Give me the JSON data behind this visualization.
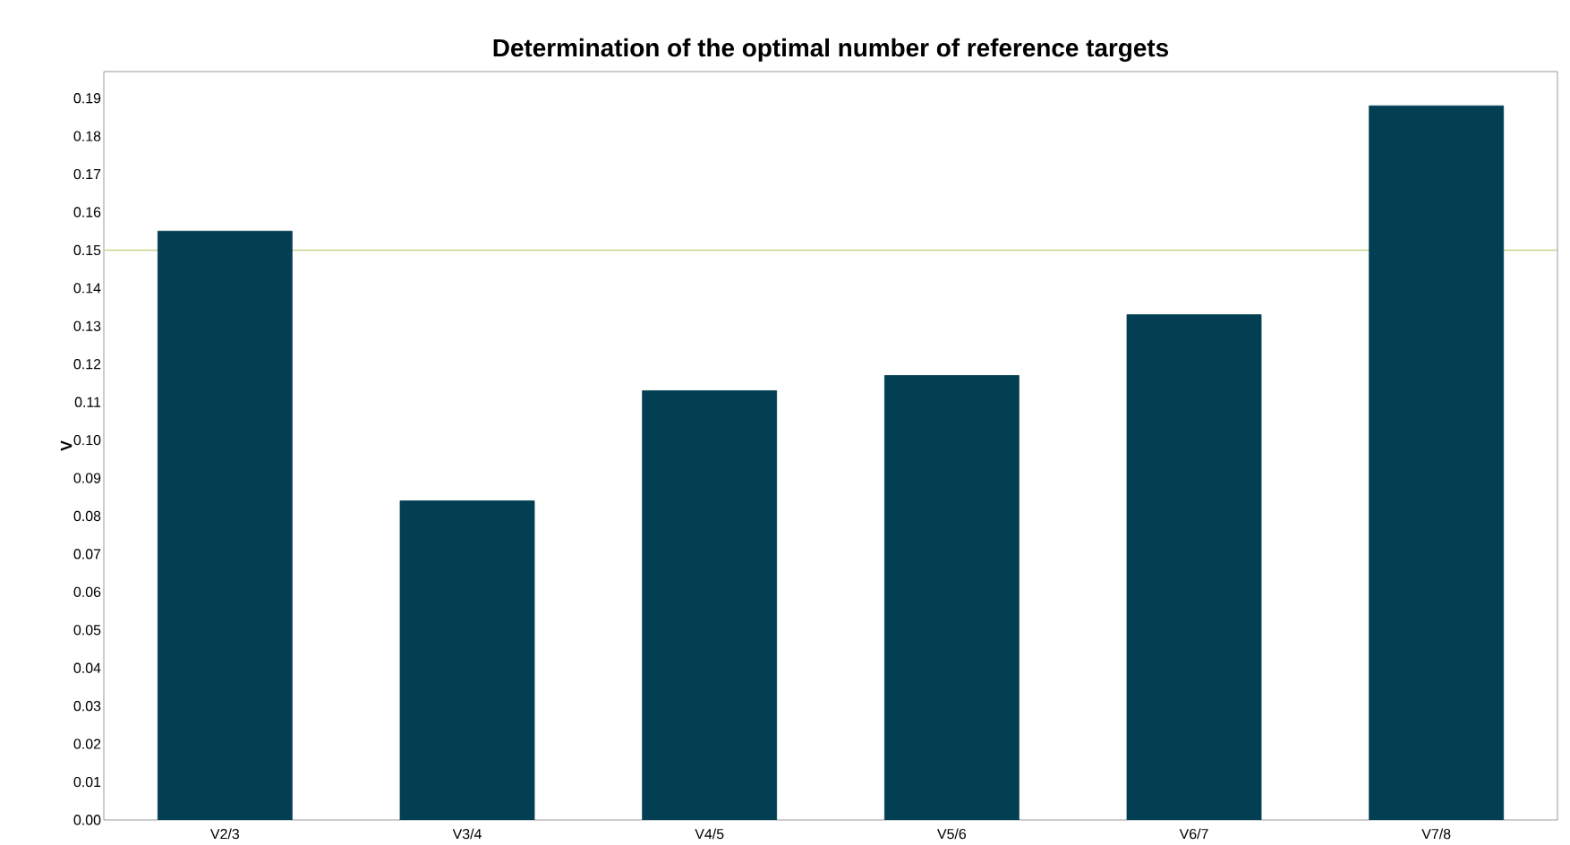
{
  "chart_data": {
    "type": "bar",
    "title": "Determination of the optimal number of reference targets",
    "ylabel": "V",
    "categories": [
      "V2/3",
      "V3/4",
      "V4/5",
      "V5/6",
      "V6/7",
      "V7/8"
    ],
    "values": [
      0.155,
      0.084,
      0.113,
      0.117,
      0.133,
      0.188
    ],
    "color": "#023f53",
    "ylim": [
      0,
      0.197
    ],
    "yticks": [
      {
        "value": 0,
        "label": "0.00"
      },
      {
        "value": 0.01,
        "label": "0.01"
      },
      {
        "value": 0.02,
        "label": "0.02"
      },
      {
        "value": 0.03,
        "label": "0.03"
      },
      {
        "value": 0.04,
        "label": "0.04"
      },
      {
        "value": 0.05,
        "label": "0.05"
      },
      {
        "value": 0.06,
        "label": "0.06"
      },
      {
        "value": 0.07,
        "label": "0.07"
      },
      {
        "value": 0.08,
        "label": "0.08"
      },
      {
        "value": 0.09,
        "label": "0.09"
      },
      {
        "value": 0.1,
        "label": "0.10"
      },
      {
        "value": 0.11,
        "label": "0.11"
      },
      {
        "value": 0.12,
        "label": "0.12"
      },
      {
        "value": 0.13,
        "label": "0.13"
      },
      {
        "value": 0.14,
        "label": "0.14"
      },
      {
        "value": 0.15,
        "label": "0.15"
      },
      {
        "value": 0.16,
        "label": "0.16"
      },
      {
        "value": 0.17,
        "label": "0.17"
      },
      {
        "value": 0.18,
        "label": "0.18"
      },
      {
        "value": 0.19,
        "label": "0.19"
      }
    ],
    "ref_lines": [
      {
        "axis": "y",
        "value": 0.15,
        "color": "#c8d48a"
      }
    ]
  }
}
